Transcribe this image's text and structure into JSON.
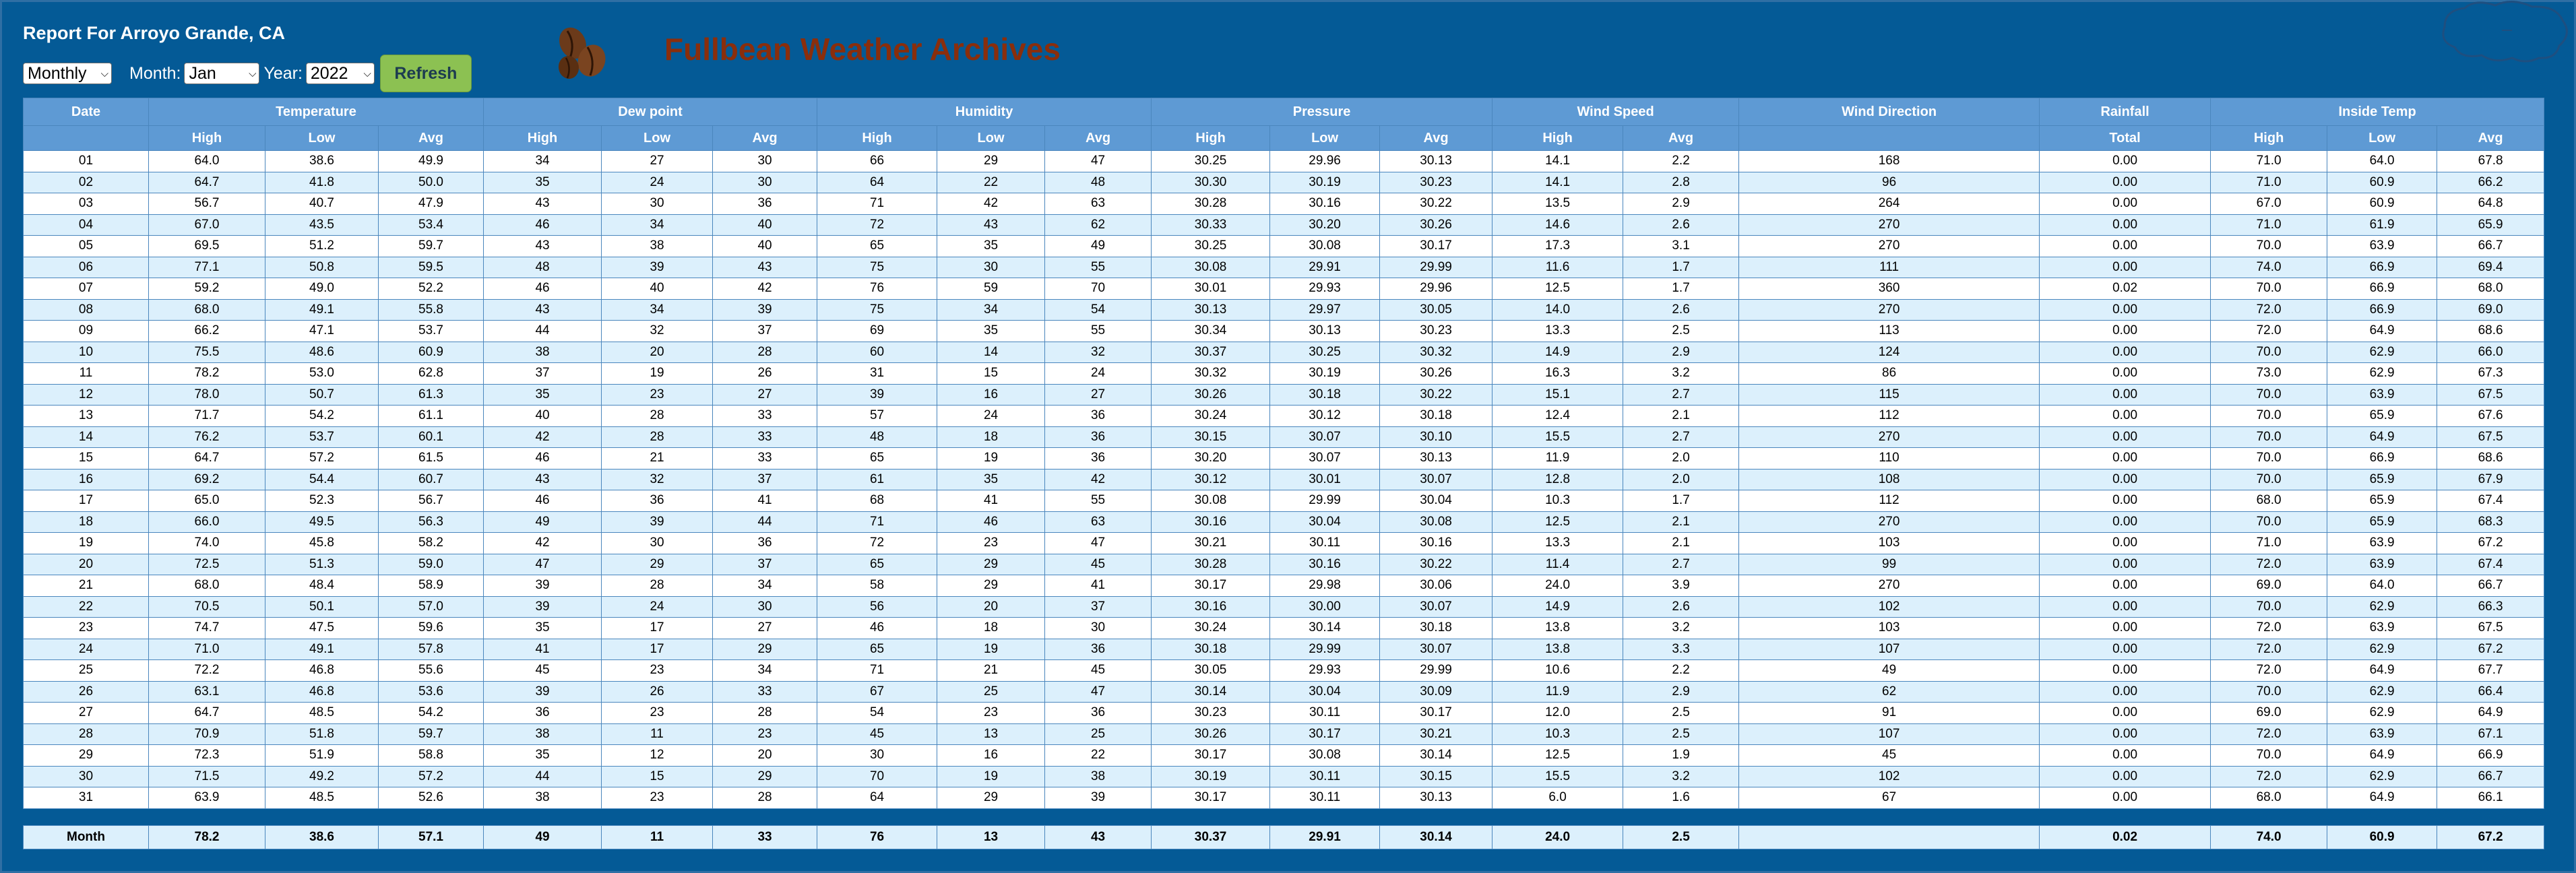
{
  "report": {
    "title": "Report For Arroyo Grande, CA"
  },
  "controls": {
    "period_value": "Monthly",
    "month_label": "Month:",
    "month_value": "Jan",
    "year_label": "Year:",
    "year_value": "2022",
    "refresh_label": "Refresh"
  },
  "brand": {
    "name": "Fullbean Weather Archives",
    "logo_icon": "coffee-beans-icon",
    "accent_color": "#8a2e0c"
  },
  "colors": {
    "background": "#045a96",
    "header": "#5e9ad4",
    "row_alt": "#dcf0fc",
    "refresh": "#8cc152"
  },
  "table": {
    "groups": [
      {
        "label": "Date",
        "span": 1
      },
      {
        "label": "Temperature",
        "span": 3
      },
      {
        "label": "Dew point",
        "span": 3
      },
      {
        "label": "Humidity",
        "span": 3
      },
      {
        "label": "Pressure",
        "span": 3
      },
      {
        "label": "Wind Speed",
        "span": 2
      },
      {
        "label": "Wind Direction",
        "span": 1
      },
      {
        "label": "Rainfall",
        "span": 1
      },
      {
        "label": "Inside Temp",
        "span": 3
      }
    ],
    "subheaders": [
      "",
      "High",
      "Low",
      "Avg",
      "High",
      "Low",
      "Avg",
      "High",
      "Low",
      "Avg",
      "High",
      "Low",
      "Avg",
      "High",
      "Avg",
      "",
      "Total",
      "High",
      "Low",
      "Avg"
    ],
    "rows": [
      [
        "01",
        "64.0",
        "38.6",
        "49.9",
        "34",
        "27",
        "30",
        "66",
        "29",
        "47",
        "30.25",
        "29.96",
        "30.13",
        "14.1",
        "2.2",
        "168",
        "0.00",
        "71.0",
        "64.0",
        "67.8"
      ],
      [
        "02",
        "64.7",
        "41.8",
        "50.0",
        "35",
        "24",
        "30",
        "64",
        "22",
        "48",
        "30.30",
        "30.19",
        "30.23",
        "14.1",
        "2.8",
        "96",
        "0.00",
        "71.0",
        "60.9",
        "66.2"
      ],
      [
        "03",
        "56.7",
        "40.7",
        "47.9",
        "43",
        "30",
        "36",
        "71",
        "42",
        "63",
        "30.28",
        "30.16",
        "30.22",
        "13.5",
        "2.9",
        "264",
        "0.00",
        "67.0",
        "60.9",
        "64.8"
      ],
      [
        "04",
        "67.0",
        "43.5",
        "53.4",
        "46",
        "34",
        "40",
        "72",
        "43",
        "62",
        "30.33",
        "30.20",
        "30.26",
        "14.6",
        "2.6",
        "270",
        "0.00",
        "71.0",
        "61.9",
        "65.9"
      ],
      [
        "05",
        "69.5",
        "51.2",
        "59.7",
        "43",
        "38",
        "40",
        "65",
        "35",
        "49",
        "30.25",
        "30.08",
        "30.17",
        "17.3",
        "3.1",
        "270",
        "0.00",
        "70.0",
        "63.9",
        "66.7"
      ],
      [
        "06",
        "77.1",
        "50.8",
        "59.5",
        "48",
        "39",
        "43",
        "75",
        "30",
        "55",
        "30.08",
        "29.91",
        "29.99",
        "11.6",
        "1.7",
        "111",
        "0.00",
        "74.0",
        "66.9",
        "69.4"
      ],
      [
        "07",
        "59.2",
        "49.0",
        "52.2",
        "46",
        "40",
        "42",
        "76",
        "59",
        "70",
        "30.01",
        "29.93",
        "29.96",
        "12.5",
        "1.7",
        "360",
        "0.02",
        "70.0",
        "66.9",
        "68.0"
      ],
      [
        "08",
        "68.0",
        "49.1",
        "55.8",
        "43",
        "34",
        "39",
        "75",
        "34",
        "54",
        "30.13",
        "29.97",
        "30.05",
        "14.0",
        "2.6",
        "270",
        "0.00",
        "72.0",
        "66.9",
        "69.0"
      ],
      [
        "09",
        "66.2",
        "47.1",
        "53.7",
        "44",
        "32",
        "37",
        "69",
        "35",
        "55",
        "30.34",
        "30.13",
        "30.23",
        "13.3",
        "2.5",
        "113",
        "0.00",
        "72.0",
        "64.9",
        "68.6"
      ],
      [
        "10",
        "75.5",
        "48.6",
        "60.9",
        "38",
        "20",
        "28",
        "60",
        "14",
        "32",
        "30.37",
        "30.25",
        "30.32",
        "14.9",
        "2.9",
        "124",
        "0.00",
        "70.0",
        "62.9",
        "66.0"
      ],
      [
        "11",
        "78.2",
        "53.0",
        "62.8",
        "37",
        "19",
        "26",
        "31",
        "15",
        "24",
        "30.32",
        "30.19",
        "30.26",
        "16.3",
        "3.2",
        "86",
        "0.00",
        "73.0",
        "62.9",
        "67.3"
      ],
      [
        "12",
        "78.0",
        "50.7",
        "61.3",
        "35",
        "23",
        "27",
        "39",
        "16",
        "27",
        "30.26",
        "30.18",
        "30.22",
        "15.1",
        "2.7",
        "115",
        "0.00",
        "70.0",
        "63.9",
        "67.5"
      ],
      [
        "13",
        "71.7",
        "54.2",
        "61.1",
        "40",
        "28",
        "33",
        "57",
        "24",
        "36",
        "30.24",
        "30.12",
        "30.18",
        "12.4",
        "2.1",
        "112",
        "0.00",
        "70.0",
        "65.9",
        "67.6"
      ],
      [
        "14",
        "76.2",
        "53.7",
        "60.1",
        "42",
        "28",
        "33",
        "48",
        "18",
        "36",
        "30.15",
        "30.07",
        "30.10",
        "15.5",
        "2.7",
        "270",
        "0.00",
        "70.0",
        "64.9",
        "67.5"
      ],
      [
        "15",
        "64.7",
        "57.2",
        "61.5",
        "46",
        "21",
        "33",
        "65",
        "19",
        "36",
        "30.20",
        "30.07",
        "30.13",
        "11.9",
        "2.0",
        "110",
        "0.00",
        "70.0",
        "66.9",
        "68.6"
      ],
      [
        "16",
        "69.2",
        "54.4",
        "60.7",
        "43",
        "32",
        "37",
        "61",
        "35",
        "42",
        "30.12",
        "30.01",
        "30.07",
        "12.8",
        "2.0",
        "108",
        "0.00",
        "70.0",
        "65.9",
        "67.9"
      ],
      [
        "17",
        "65.0",
        "52.3",
        "56.7",
        "46",
        "36",
        "41",
        "68",
        "41",
        "55",
        "30.08",
        "29.99",
        "30.04",
        "10.3",
        "1.7",
        "112",
        "0.00",
        "68.0",
        "65.9",
        "67.4"
      ],
      [
        "18",
        "66.0",
        "49.5",
        "56.3",
        "49",
        "39",
        "44",
        "71",
        "46",
        "63",
        "30.16",
        "30.04",
        "30.08",
        "12.5",
        "2.1",
        "270",
        "0.00",
        "70.0",
        "65.9",
        "68.3"
      ],
      [
        "19",
        "74.0",
        "45.8",
        "58.2",
        "42",
        "30",
        "36",
        "72",
        "23",
        "47",
        "30.21",
        "30.11",
        "30.16",
        "13.3",
        "2.1",
        "103",
        "0.00",
        "71.0",
        "63.9",
        "67.2"
      ],
      [
        "20",
        "72.5",
        "51.3",
        "59.0",
        "47",
        "29",
        "37",
        "65",
        "29",
        "45",
        "30.28",
        "30.16",
        "30.22",
        "11.4",
        "2.7",
        "99",
        "0.00",
        "72.0",
        "63.9",
        "67.4"
      ],
      [
        "21",
        "68.0",
        "48.4",
        "58.9",
        "39",
        "28",
        "34",
        "58",
        "29",
        "41",
        "30.17",
        "29.98",
        "30.06",
        "24.0",
        "3.9",
        "270",
        "0.00",
        "69.0",
        "64.0",
        "66.7"
      ],
      [
        "22",
        "70.5",
        "50.1",
        "57.0",
        "39",
        "24",
        "30",
        "56",
        "20",
        "37",
        "30.16",
        "30.00",
        "30.07",
        "14.9",
        "2.6",
        "102",
        "0.00",
        "70.0",
        "62.9",
        "66.3"
      ],
      [
        "23",
        "74.7",
        "47.5",
        "59.6",
        "35",
        "17",
        "27",
        "46",
        "18",
        "30",
        "30.24",
        "30.14",
        "30.18",
        "13.8",
        "3.2",
        "103",
        "0.00",
        "72.0",
        "63.9",
        "67.5"
      ],
      [
        "24",
        "71.0",
        "49.1",
        "57.8",
        "41",
        "17",
        "29",
        "65",
        "19",
        "36",
        "30.18",
        "29.99",
        "30.07",
        "13.8",
        "3.3",
        "107",
        "0.00",
        "72.0",
        "62.9",
        "67.2"
      ],
      [
        "25",
        "72.2",
        "46.8",
        "55.6",
        "45",
        "23",
        "34",
        "71",
        "21",
        "45",
        "30.05",
        "29.93",
        "29.99",
        "10.6",
        "2.2",
        "49",
        "0.00",
        "72.0",
        "64.9",
        "67.7"
      ],
      [
        "26",
        "63.1",
        "46.8",
        "53.6",
        "39",
        "26",
        "33",
        "67",
        "25",
        "47",
        "30.14",
        "30.04",
        "30.09",
        "11.9",
        "2.9",
        "62",
        "0.00",
        "70.0",
        "62.9",
        "66.4"
      ],
      [
        "27",
        "64.7",
        "48.5",
        "54.2",
        "36",
        "23",
        "28",
        "54",
        "23",
        "36",
        "30.23",
        "30.11",
        "30.17",
        "12.0",
        "2.5",
        "91",
        "0.00",
        "69.0",
        "62.9",
        "64.9"
      ],
      [
        "28",
        "70.9",
        "51.8",
        "59.7",
        "38",
        "11",
        "23",
        "45",
        "13",
        "25",
        "30.26",
        "30.17",
        "30.21",
        "10.3",
        "2.5",
        "107",
        "0.00",
        "72.0",
        "63.9",
        "67.1"
      ],
      [
        "29",
        "72.3",
        "51.9",
        "58.8",
        "35",
        "12",
        "20",
        "30",
        "16",
        "22",
        "30.17",
        "30.08",
        "30.14",
        "12.5",
        "1.9",
        "45",
        "0.00",
        "70.0",
        "64.9",
        "66.9"
      ],
      [
        "30",
        "71.5",
        "49.2",
        "57.2",
        "44",
        "15",
        "29",
        "70",
        "19",
        "38",
        "30.19",
        "30.11",
        "30.15",
        "15.5",
        "3.2",
        "102",
        "0.00",
        "72.0",
        "62.9",
        "66.7"
      ],
      [
        "31",
        "63.9",
        "48.5",
        "52.6",
        "38",
        "23",
        "28",
        "64",
        "29",
        "39",
        "30.17",
        "30.11",
        "30.13",
        "6.0",
        "1.6",
        "67",
        "0.00",
        "68.0",
        "64.9",
        "66.1"
      ]
    ],
    "summary": [
      "Month",
      "78.2",
      "38.6",
      "57.1",
      "49",
      "11",
      "33",
      "76",
      "13",
      "43",
      "30.37",
      "29.91",
      "30.14",
      "24.0",
      "2.5",
      "",
      "0.02",
      "74.0",
      "60.9",
      "67.2"
    ]
  }
}
